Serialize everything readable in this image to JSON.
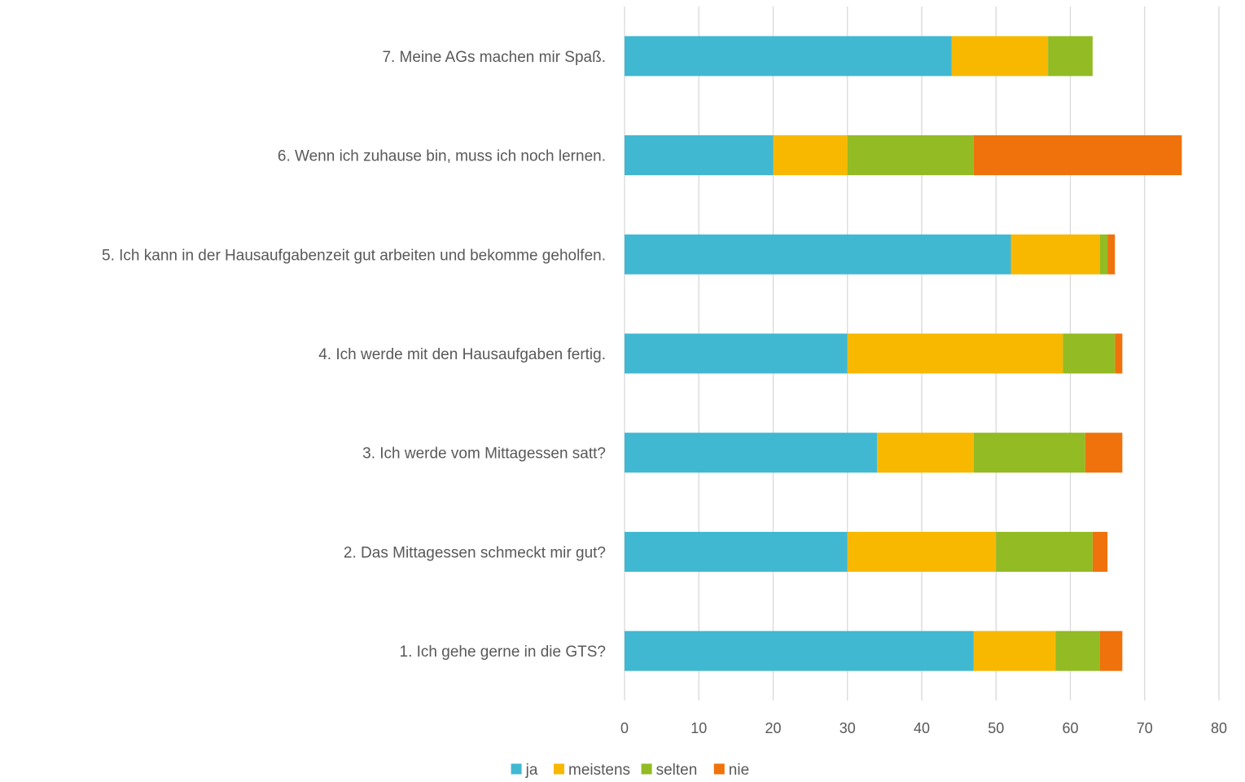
{
  "chart_data": {
    "type": "bar",
    "orientation": "horizontal",
    "stacked": true,
    "title": "",
    "xlabel": "",
    "ylabel": "",
    "categories": [
      "1. Ich gehe gerne in die GTS?",
      "2. Das Mittagessen schmeckt mir gut?",
      "3. Ich werde vom Mittagessen satt?",
      "4. Ich werde mit den Hausaufgaben fertig.",
      "5. Ich kann in der Hausaufgabenzeit gut arbeiten und bekomme geholfen.",
      "6. Wenn ich zuhause bin, muss ich noch lernen.",
      "7. Meine AGs machen mir Spaß."
    ],
    "series": [
      {
        "name": "ja",
        "color": "#41b8d2",
        "values": [
          47,
          30,
          34,
          30,
          52,
          20,
          44
        ]
      },
      {
        "name": "meistens",
        "color": "#f8b800",
        "values": [
          11,
          20,
          13,
          29,
          12,
          10,
          13
        ]
      },
      {
        "name": "selten",
        "color": "#92bb24",
        "values": [
          6,
          13,
          15,
          7,
          1,
          17,
          6
        ]
      },
      {
        "name": "nie",
        "color": "#ef720c",
        "values": [
          3,
          2,
          5,
          1,
          1,
          28,
          0
        ]
      }
    ],
    "xlim": [
      0,
      80
    ],
    "xticks": [
      0,
      10,
      20,
      30,
      40,
      50,
      60,
      70,
      80
    ],
    "grid": true,
    "legend_position": "bottom"
  }
}
